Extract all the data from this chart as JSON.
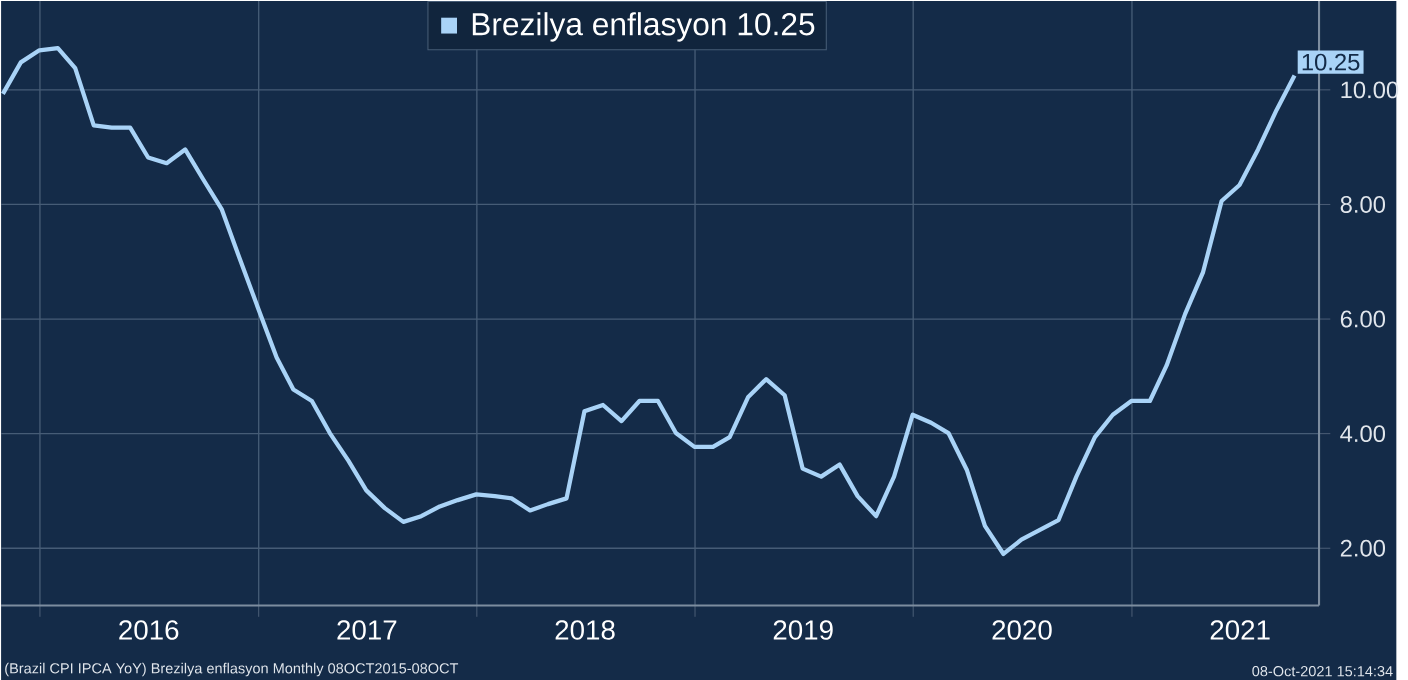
{
  "chart_data": {
    "type": "line",
    "x": [
      "2015-10-31",
      "2015-11-30",
      "2015-12-31",
      "2016-01-31",
      "2016-02-29",
      "2016-03-31",
      "2016-04-30",
      "2016-05-31",
      "2016-06-30",
      "2016-07-31",
      "2016-08-31",
      "2016-09-30",
      "2016-10-31",
      "2016-11-30",
      "2016-12-31",
      "2017-01-31",
      "2017-02-28",
      "2017-03-31",
      "2017-04-30",
      "2017-05-31",
      "2017-06-30",
      "2017-07-31",
      "2017-08-31",
      "2017-09-30",
      "2017-10-31",
      "2017-11-30",
      "2017-12-31",
      "2018-01-31",
      "2018-02-28",
      "2018-03-31",
      "2018-04-30",
      "2018-05-31",
      "2018-06-30",
      "2018-07-31",
      "2018-08-31",
      "2018-09-30",
      "2018-10-31",
      "2018-11-30",
      "2018-12-31",
      "2019-01-31",
      "2019-02-28",
      "2019-03-31",
      "2019-04-30",
      "2019-05-31",
      "2019-06-30",
      "2019-07-31",
      "2019-08-31",
      "2019-09-30",
      "2019-10-31",
      "2019-11-30",
      "2019-12-31",
      "2020-01-31",
      "2020-02-29",
      "2020-03-31",
      "2020-04-30",
      "2020-05-31",
      "2020-06-30",
      "2020-07-31",
      "2020-08-31",
      "2020-09-30",
      "2020-10-31",
      "2020-11-30",
      "2020-12-31",
      "2021-01-31",
      "2021-02-28",
      "2021-03-31",
      "2021-04-30",
      "2021-05-31",
      "2021-06-30",
      "2021-07-31",
      "2021-08-31",
      "2021-09-30"
    ],
    "series": [
      {
        "name": "Brezilya enflasyon 10.25",
        "color": "#a9d3f7",
        "values": [
          9.93,
          10.48,
          10.69,
          10.73,
          10.38,
          9.38,
          9.34,
          9.34,
          8.82,
          8.72,
          8.96,
          8.44,
          7.92,
          7.06,
          6.19,
          5.33,
          4.77,
          4.57,
          4.01,
          3.53,
          3.01,
          2.7,
          2.46,
          2.56,
          2.73,
          2.84,
          2.94,
          2.91,
          2.87,
          2.66,
          2.77,
          2.87,
          4.39,
          4.5,
          4.22,
          4.57,
          4.57,
          4.01,
          3.77,
          3.77,
          3.94,
          4.64,
          4.95,
          4.67,
          3.39,
          3.25,
          3.46,
          2.91,
          2.56,
          3.25,
          4.33,
          4.19,
          4.01,
          3.36,
          2.39,
          1.9,
          2.15,
          2.32,
          2.49,
          3.25,
          3.94,
          4.33,
          4.57,
          4.57,
          5.19,
          6.09,
          6.82,
          8.06,
          8.34,
          8.96,
          9.65,
          10.25
        ]
      }
    ],
    "xlim": [
      "2015-10-28",
      "2021-11-10"
    ],
    "xticks": [
      {
        "value": "2016-01-01",
        "label": null
      },
      {
        "value": "2016-07-01",
        "label": "2016"
      },
      {
        "value": "2017-01-01",
        "label": null
      },
      {
        "value": "2017-07-01",
        "label": "2017"
      },
      {
        "value": "2018-01-01",
        "label": null
      },
      {
        "value": "2018-07-01",
        "label": "2018"
      },
      {
        "value": "2019-01-01",
        "label": null
      },
      {
        "value": "2019-07-01",
        "label": "2019"
      },
      {
        "value": "2020-01-01",
        "label": null
      },
      {
        "value": "2020-07-01",
        "label": "2020"
      },
      {
        "value": "2021-01-01",
        "label": null
      },
      {
        "value": "2021-07-01",
        "label": "2021"
      }
    ],
    "ylim": [
      1.0,
      11.55
    ],
    "yticks": [
      {
        "value": 2,
        "label": "2.00"
      },
      {
        "value": 4,
        "label": "4.00"
      },
      {
        "value": 6,
        "label": "6.00"
      },
      {
        "value": 8,
        "label": "8.00"
      },
      {
        "value": 10,
        "label": "10.00"
      }
    ],
    "grid": true,
    "legend": "top",
    "annotations": [
      {
        "text": "10.25",
        "x": "2021-09-30",
        "y": 10.25
      },
      "(Brazil CPI IPCA YoY) Brezilya enflasyon  Monthly 08OCT2015-08OCT",
      "08-Oct-2021 15:14:34"
    ]
  }
}
